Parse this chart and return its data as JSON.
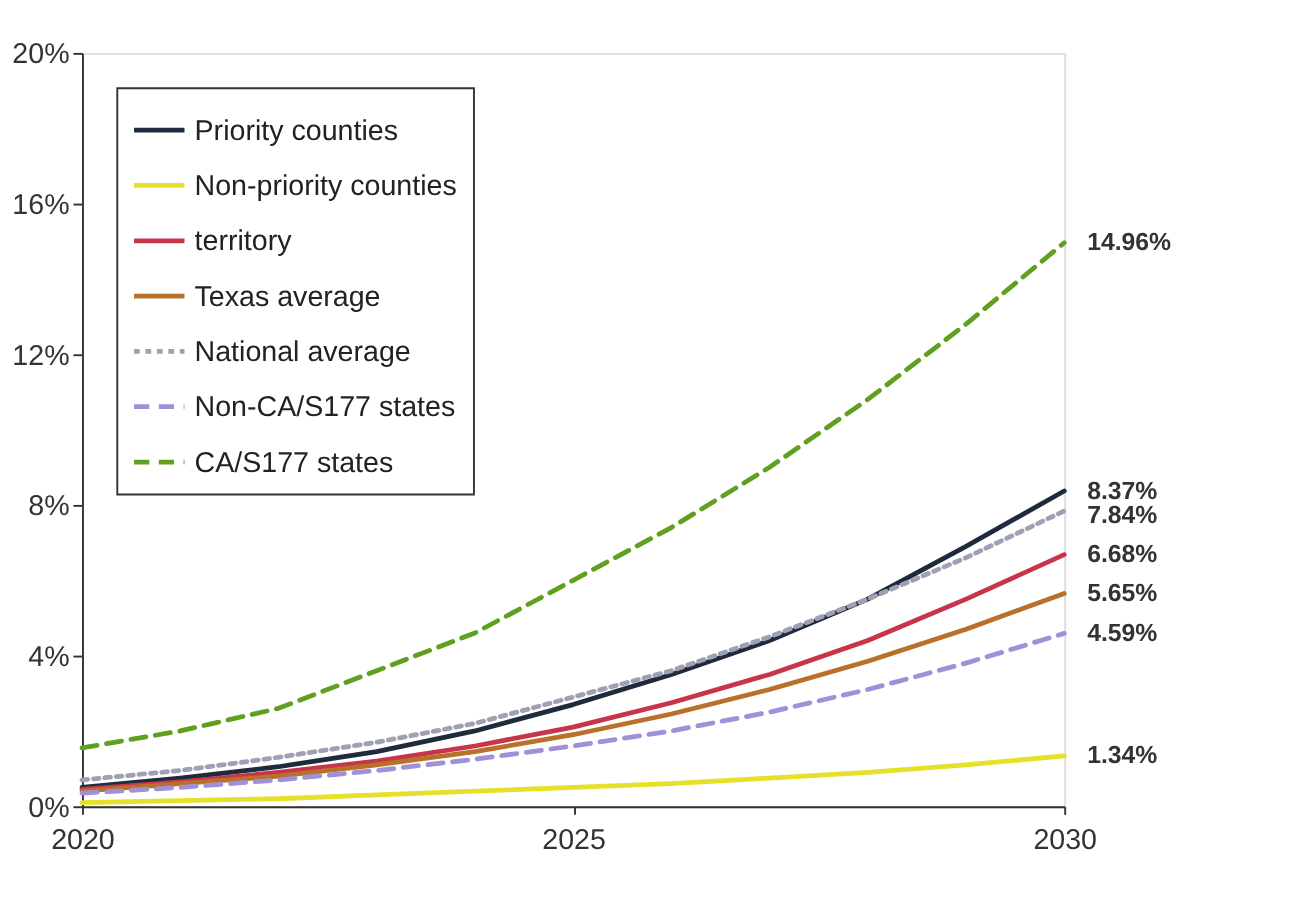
{
  "chart_data": {
    "type": "line",
    "x": [
      2020,
      2021,
      2022,
      2023,
      2024,
      2025,
      2026,
      2027,
      2028,
      2029,
      2030
    ],
    "xlim": [
      2020,
      2030
    ],
    "xticks": [
      2020,
      2025,
      2030
    ],
    "ylim": [
      0,
      20
    ],
    "yticks": [
      {
        "value": 0,
        "label": "0%"
      },
      {
        "value": 4,
        "label": "4%"
      },
      {
        "value": 8,
        "label": "8%"
      },
      {
        "value": 12,
        "label": "12%"
      },
      {
        "value": 16,
        "label": "16%"
      },
      {
        "value": 20,
        "label": "20%"
      }
    ],
    "grid": false,
    "legend": "top left",
    "series": [
      {
        "name": "Priority counties",
        "color": "#1f2a3c",
        "line_style": "solid",
        "values": [
          0.5,
          0.75,
          1.05,
          1.45,
          2.0,
          2.7,
          3.5,
          4.4,
          5.5,
          6.9,
          8.37
        ],
        "value_labels": [
          null,
          null,
          null,
          null,
          null,
          null,
          null,
          null,
          null,
          null,
          "8.37%"
        ]
      },
      {
        "name": "Non-priority counties",
        "color": "#e6e02a",
        "line_style": "solid",
        "values": [
          0.1,
          0.15,
          0.2,
          0.3,
          0.4,
          0.5,
          0.6,
          0.75,
          0.9,
          1.1,
          1.34
        ],
        "value_labels": [
          null,
          null,
          null,
          null,
          null,
          null,
          null,
          null,
          null,
          null,
          "1.34%"
        ]
      },
      {
        "name": "territory",
        "color": "#c8344a",
        "line_style": "solid",
        "values": [
          0.45,
          0.65,
          0.9,
          1.2,
          1.6,
          2.1,
          2.75,
          3.5,
          4.4,
          5.5,
          6.68
        ],
        "value_labels": [
          null,
          null,
          null,
          null,
          null,
          null,
          null,
          null,
          null,
          null,
          "6.68%"
        ]
      },
      {
        "name": "Texas average",
        "color": "#b8702a",
        "line_style": "solid",
        "values": [
          0.4,
          0.6,
          0.8,
          1.1,
          1.45,
          1.9,
          2.45,
          3.1,
          3.85,
          4.7,
          5.65
        ],
        "value_labels": [
          null,
          null,
          null,
          null,
          null,
          null,
          null,
          null,
          null,
          null,
          "5.65%"
        ]
      },
      {
        "name": "National average",
        "color": "#a0a0b4",
        "line_style": "dotted",
        "values": [
          0.7,
          0.95,
          1.3,
          1.7,
          2.2,
          2.9,
          3.6,
          4.5,
          5.5,
          6.6,
          7.84
        ],
        "value_labels": [
          null,
          null,
          null,
          null,
          null,
          null,
          null,
          null,
          null,
          null,
          "7.84%"
        ]
      },
      {
        "name": "Non-CA/S177 states",
        "color": "#a090d8",
        "line_style": "dashed",
        "values": [
          0.35,
          0.5,
          0.7,
          0.95,
          1.25,
          1.6,
          2.0,
          2.5,
          3.1,
          3.8,
          4.59
        ],
        "value_labels": [
          null,
          null,
          null,
          null,
          null,
          null,
          null,
          null,
          null,
          null,
          "4.59%"
        ]
      },
      {
        "name": "CA/S177 states",
        "color": "#5fa020",
        "line_style": "dashed",
        "values": [
          1.55,
          2.0,
          2.6,
          3.6,
          4.6,
          6.0,
          7.4,
          9.0,
          10.8,
          12.8,
          14.96
        ],
        "value_labels": [
          null,
          null,
          null,
          null,
          null,
          null,
          null,
          null,
          null,
          null,
          "14.96%"
        ]
      }
    ]
  }
}
